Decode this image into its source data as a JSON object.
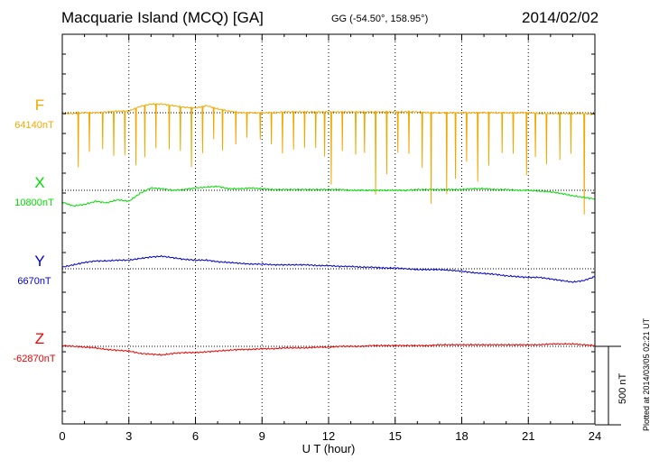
{
  "header": {
    "station": "Macquarie Island (MCQ)  [GA]",
    "coords": "GG (-54.50°, 158.95°)",
    "date": "2014/02/02"
  },
  "plotted_note": "Plotted at 2014/03/05 02:21  UT",
  "scale_bar": {
    "label": "500 nT",
    "value_nT": 500
  },
  "chart_data": {
    "type": "line",
    "xlabel": "U T (hour)",
    "xlim": [
      0,
      24
    ],
    "xticks": [
      0,
      3,
      6,
      9,
      12,
      15,
      18,
      21,
      24
    ],
    "grid_x": "dotted vertical lines every 3 hours",
    "scale_nT_per_500": 500,
    "series": [
      {
        "name": "F",
        "baseline_label": "64140nT",
        "baseline_nT": 64140,
        "color": "#f0a800",
        "x": [
          0,
          0.5,
          1,
          1.5,
          2,
          2.5,
          3,
          3.5,
          4,
          4.5,
          5,
          5.5,
          6,
          6.5,
          7,
          7.5,
          8,
          8.5,
          9,
          9.5,
          10,
          10.5,
          11,
          11.5,
          12,
          12.5,
          13,
          13.5,
          14,
          14.5,
          15,
          15.5,
          16,
          16.5,
          17,
          17.5,
          18,
          18.5,
          19,
          19.5,
          20,
          20.5,
          21,
          21.5,
          22,
          22.5,
          23,
          23.5,
          24
        ],
        "y": [
          -5,
          -5,
          0,
          0,
          5,
          10,
          10,
          40,
          55,
          55,
          45,
          35,
          30,
          45,
          25,
          10,
          0,
          0,
          0,
          0,
          5,
          5,
          5,
          5,
          5,
          5,
          5,
          5,
          5,
          5,
          5,
          5,
          5,
          0,
          0,
          0,
          0,
          0,
          0,
          0,
          0,
          0,
          0,
          -5,
          -5,
          -5,
          -5,
          -5,
          -10
        ],
        "spikes": [
          {
            "t": 0.7,
            "d": -350
          },
          {
            "t": 1.2,
            "d": -250
          },
          {
            "t": 1.8,
            "d": -230
          },
          {
            "t": 2.3,
            "d": -280
          },
          {
            "t": 2.8,
            "d": -280
          },
          {
            "t": 3.3,
            "d": -360
          },
          {
            "t": 3.7,
            "d": -330
          },
          {
            "t": 4.2,
            "d": -280
          },
          {
            "t": 4.8,
            "d": -280
          },
          {
            "t": 5.3,
            "d": -280
          },
          {
            "t": 5.8,
            "d": -380
          },
          {
            "t": 6.3,
            "d": -300
          },
          {
            "t": 6.8,
            "d": -200
          },
          {
            "t": 7.2,
            "d": -260
          },
          {
            "t": 7.8,
            "d": -210
          },
          {
            "t": 8.3,
            "d": -160
          },
          {
            "t": 8.9,
            "d": -170
          },
          {
            "t": 9.4,
            "d": -200
          },
          {
            "t": 9.9,
            "d": -260
          },
          {
            "t": 10.4,
            "d": -240
          },
          {
            "t": 10.9,
            "d": -230
          },
          {
            "t": 11.4,
            "d": -230
          },
          {
            "t": 11.8,
            "d": -280
          },
          {
            "t": 12.1,
            "d": -460
          },
          {
            "t": 12.6,
            "d": -250
          },
          {
            "t": 13.2,
            "d": -270
          },
          {
            "t": 13.6,
            "d": -260
          },
          {
            "t": 14.1,
            "d": -530
          },
          {
            "t": 14.6,
            "d": -400
          },
          {
            "t": 15.1,
            "d": -260
          },
          {
            "t": 15.6,
            "d": -270
          },
          {
            "t": 16.2,
            "d": -350
          },
          {
            "t": 16.6,
            "d": -580
          },
          {
            "t": 17.3,
            "d": -520
          },
          {
            "t": 17.7,
            "d": -420
          },
          {
            "t": 18.2,
            "d": -310
          },
          {
            "t": 18.7,
            "d": -440
          },
          {
            "t": 19.2,
            "d": -340
          },
          {
            "t": 19.8,
            "d": -260
          },
          {
            "t": 20.3,
            "d": -260
          },
          {
            "t": 20.9,
            "d": -400
          },
          {
            "t": 21.3,
            "d": -280
          },
          {
            "t": 21.8,
            "d": -320
          },
          {
            "t": 22.4,
            "d": -300
          },
          {
            "t": 22.9,
            "d": -260
          },
          {
            "t": 23.5,
            "d": -640
          }
        ]
      },
      {
        "name": "X",
        "baseline_label": "10800nT",
        "baseline_nT": 10800,
        "color": "#00dd00",
        "x": [
          0,
          0.5,
          1,
          1.5,
          2,
          2.5,
          3,
          3.5,
          4,
          4.5,
          5,
          5.5,
          6,
          6.5,
          7,
          7.5,
          8,
          8.5,
          9,
          9.5,
          10,
          10.5,
          11,
          11.5,
          12,
          12.5,
          13,
          13.5,
          14,
          14.5,
          15,
          15.5,
          16,
          16.5,
          17,
          17.5,
          18,
          18.5,
          19,
          19.5,
          20,
          20.5,
          21,
          21.5,
          22,
          22.5,
          23,
          23.5,
          24
        ],
        "y": [
          -75,
          -100,
          -90,
          -70,
          -80,
          -60,
          -70,
          -20,
          15,
          10,
          0,
          5,
          15,
          20,
          25,
          10,
          10,
          15,
          10,
          5,
          5,
          5,
          5,
          5,
          5,
          5,
          0,
          0,
          0,
          0,
          0,
          0,
          5,
          5,
          5,
          5,
          5,
          10,
          10,
          5,
          5,
          0,
          0,
          -5,
          -10,
          -20,
          -35,
          -45,
          -55
        ]
      },
      {
        "name": "Y",
        "baseline_label": "6670nT",
        "baseline_nT": 6670,
        "color": "#0000cc",
        "x": [
          0,
          0.5,
          1,
          1.5,
          2,
          2.5,
          3,
          3.5,
          4,
          4.5,
          5,
          5.5,
          6,
          6.5,
          7,
          7.5,
          8,
          8.5,
          9,
          9.5,
          10,
          10.5,
          11,
          11.5,
          12,
          12.5,
          13,
          13.5,
          14,
          14.5,
          15,
          15.5,
          16,
          16.5,
          17,
          17.5,
          18,
          18.5,
          19,
          19.5,
          20,
          20.5,
          21,
          21.5,
          22,
          22.5,
          23,
          23.5,
          24
        ],
        "y": [
          10,
          25,
          40,
          50,
          50,
          55,
          55,
          65,
          75,
          80,
          70,
          60,
          55,
          55,
          45,
          40,
          35,
          30,
          30,
          25,
          25,
          25,
          25,
          20,
          20,
          15,
          15,
          10,
          10,
          5,
          5,
          0,
          -5,
          -5,
          -5,
          -10,
          -15,
          -25,
          -30,
          -35,
          -45,
          -50,
          -55,
          -55,
          -65,
          -75,
          -85,
          -75,
          -50
        ]
      },
      {
        "name": "Z",
        "baseline_label": "-62870nT",
        "baseline_nT": -62870,
        "color": "#ee0000",
        "x": [
          0,
          0.5,
          1,
          1.5,
          2,
          2.5,
          3,
          3.5,
          4,
          4.5,
          5,
          5.5,
          6,
          6.5,
          7,
          7.5,
          8,
          8.5,
          9,
          9.5,
          10,
          10.5,
          11,
          11.5,
          12,
          12.5,
          13,
          13.5,
          14,
          14.5,
          15,
          15.5,
          16,
          16.5,
          17,
          17.5,
          18,
          18.5,
          19,
          19.5,
          20,
          20.5,
          21,
          21.5,
          22,
          22.5,
          23,
          23.5,
          24
        ],
        "y": [
          5,
          0,
          -5,
          -10,
          -20,
          -25,
          -30,
          -45,
          -50,
          -55,
          -45,
          -40,
          -40,
          -35,
          -30,
          -25,
          -20,
          -20,
          -15,
          -15,
          -10,
          -10,
          -10,
          -5,
          -5,
          0,
          0,
          0,
          5,
          5,
          5,
          5,
          5,
          5,
          10,
          10,
          10,
          10,
          10,
          10,
          10,
          10,
          10,
          10,
          15,
          15,
          15,
          10,
          5
        ]
      }
    ]
  }
}
